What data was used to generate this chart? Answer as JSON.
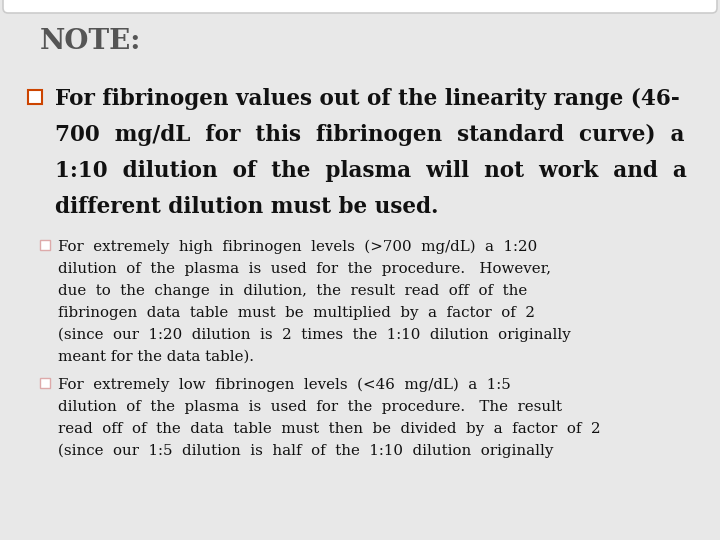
{
  "background_color": "#e8e8e8",
  "box_color": "#ffffff",
  "box_edge_color": "#cccccc",
  "title": "NOTE:",
  "title_fontsize": 20,
  "title_color": "#555555",
  "bullet1_sq_edge": "#cc4400",
  "bullet1_sq_face": "#ffffff",
  "bullet1_lines": [
    "For fibrinogen values out of the linearity range (46-",
    "700  mg/dL  for  this  fibrinogen  standard  curve)  a",
    "1:10  dilution  of  the  plasma  will  not  work  and  a",
    "different dilution must be used."
  ],
  "bullet1_fontsize": 15.5,
  "sub_sq_edge": "#ddaaaa",
  "sub_sq_face": "#ffffff",
  "sub1_lines": [
    "For  extremely  high  fibrinogen  levels  (>700  mg/dL)  a  1:20",
    "dilution  of  the  plasma  is  used  for  the  procedure.   However,",
    "due  to  the  change  in  dilution,  the  result  read  off  of  the",
    "fibrinogen  data  table  must  be  multiplied  by  a  factor  of  2",
    "(since  our  1:20  dilution  is  2  times  the  1:10  dilution  originally",
    "meant for the data table)."
  ],
  "sub2_lines": [
    "For  extremely  low  fibrinogen  levels  (<46  mg/dL)  a  1:5",
    "dilution  of  the  plasma  is  used  for  the  procedure.   The  result",
    "read  off  of  the  data  table  must  then  be  divided  by  a  factor  of  2",
    "(since  our  1:5  dilution  is  half  of  the  1:10  dilution  originally"
  ],
  "sub_fontsize": 10.8,
  "font_family": "DejaVu Serif",
  "text_color": "#111111"
}
